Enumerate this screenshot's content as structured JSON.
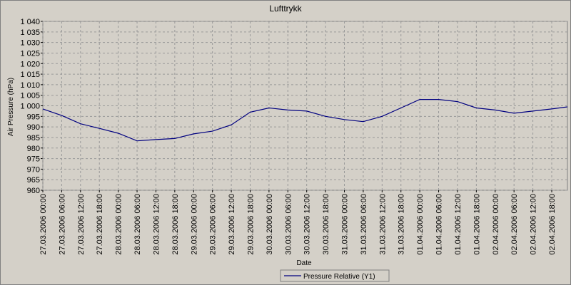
{
  "chart_data": {
    "type": "line",
    "title": "Lufttrykk",
    "xlabel": "Date",
    "ylabel": "Air Pressure (hPa)",
    "x": [
      "27.03.2006 00:00",
      "27.03.2006 06:00",
      "27.03.2006 12:00",
      "27.03.2006 18:00",
      "28.03.2006 00:00",
      "28.03.2006 06:00",
      "28.03.2006 12:00",
      "28.03.2006 18:00",
      "29.03.2006 00:00",
      "29.03.2006 06:00",
      "29.03.2006 12:00",
      "29.03.2006 18:00",
      "30.03.2006 00:00",
      "30.03.2006 06:00",
      "30.03.2006 12:00",
      "30.03.2006 18:00",
      "31.03.2006 00:00",
      "31.03.2006 06:00",
      "31.03.2006 12:00",
      "31.03.2006 18:00",
      "01.04.2006 00:00",
      "01.04.2006 06:00",
      "01.04.2006 12:00",
      "01.04.2006 18:00",
      "02.04.2006 00:00",
      "02.04.2006 06:00",
      "02.04.2006 12:00",
      "02.04.2006 18:00",
      "02.04.2006 23:00"
    ],
    "series": [
      {
        "name": "Pressure Relative (Y1)",
        "color": "#000080",
        "values": [
          998.5,
          995.4,
          991.5,
          989.3,
          987,
          983.4,
          984,
          984.5,
          986.7,
          988,
          991,
          997,
          999,
          998,
          997.5,
          995,
          993.5,
          992.5,
          995,
          999,
          1003,
          1003,
          1002,
          999,
          998,
          996.5,
          997.5,
          998.5,
          999.5
        ]
      }
    ],
    "xlim": [
      "27.03.2006 00:00",
      "02.04.2006 23:00"
    ],
    "xticks": [
      "27.03.2006 00:00",
      "27.03.2006 06:00",
      "27.03.2006 12:00",
      "27.03.2006 18:00",
      "28.03.2006 00:00",
      "28.03.2006 06:00",
      "28.03.2006 12:00",
      "28.03.2006 18:00",
      "29.03.2006 00:00",
      "29.03.2006 06:00",
      "29.03.2006 12:00",
      "29.03.2006 18:00",
      "30.03.2006 00:00",
      "30.03.2006 06:00",
      "30.03.2006 12:00",
      "30.03.2006 18:00",
      "31.03.2006 00:00",
      "31.03.2006 06:00",
      "31.03.2006 12:00",
      "31.03.2006 18:00",
      "01.04.2006 00:00",
      "01.04.2006 06:00",
      "01.04.2006 12:00",
      "01.04.2006 18:00",
      "02.04.2006 00:00",
      "02.04.2006 06:00",
      "02.04.2006 12:00",
      "02.04.2006 18:00"
    ],
    "ylim": [
      960,
      1040
    ],
    "yticks": [
      960,
      965,
      970,
      975,
      980,
      985,
      990,
      995,
      {
        "value": 1000,
        "label": "1 000"
      },
      {
        "value": 1005,
        "label": "1 005"
      },
      {
        "value": 1010,
        "label": "1 010"
      },
      {
        "value": 1015,
        "label": "1 015"
      },
      {
        "value": 1020,
        "label": "1 020"
      },
      {
        "value": 1025,
        "label": "1 025"
      },
      {
        "value": 1030,
        "label": "1 030"
      },
      {
        "value": 1035,
        "label": "1 035"
      },
      {
        "value": 1040,
        "label": "1 040"
      }
    ],
    "grid": true
  }
}
